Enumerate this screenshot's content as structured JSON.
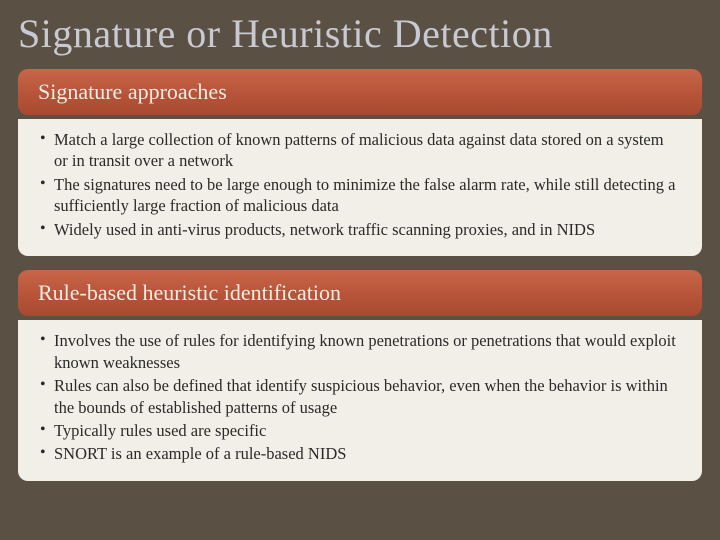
{
  "title": "Signature or Heuristic Detection",
  "sections": [
    {
      "header": "Signature approaches",
      "bullets": [
        "Match a large collection of known patterns of malicious data against data stored on a system or in transit over a network",
        "The signatures need to be large enough to minimize the false alarm rate, while still detecting a sufficiently large fraction of malicious data",
        "Widely used in anti-virus products, network traffic scanning proxies, and in NIDS"
      ]
    },
    {
      "header": "Rule-based heuristic identification",
      "bullets": [
        "Involves the use of rules for identifying known penetrations or penetrations that would exploit known weaknesses",
        "Rules can also be defined that identify suspicious behavior, even when the behavior is within the bounds of established patterns of usage",
        "Typically rules used are specific",
        "SNORT is an example of a rule-based NIDS"
      ]
    }
  ],
  "colors": {
    "background": "#5a5044",
    "title_color": "#c7cad3",
    "header_bg_top": "#c8664a",
    "header_bg_bottom": "#a84a30",
    "header_text": "#f0ece6",
    "body_bg": "#f2eee8",
    "body_text": "#2a2a2a"
  },
  "typography": {
    "title_fontsize": 40,
    "header_fontsize": 22,
    "body_fontsize": 16.5,
    "font_family": "Georgia, serif"
  }
}
